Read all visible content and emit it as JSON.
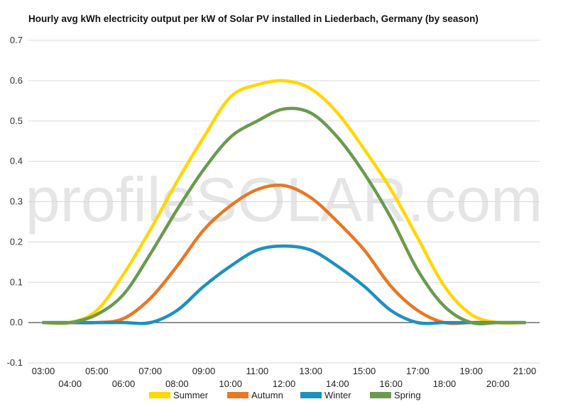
{
  "chart_data": {
    "type": "line",
    "title": "Hourly avg kWh electricity output per kW of Solar PV installed in Liederbach, Germany (by season)",
    "xlabel": "",
    "ylabel": "",
    "ylim": [
      -0.1,
      0.7
    ],
    "yticks": [
      "-0.1",
      "0.0",
      "0.1",
      "0.2",
      "0.3",
      "0.4",
      "0.5",
      "0.6",
      "0.7"
    ],
    "grid": true,
    "legend_position": "bottom",
    "watermark": "profileSOLAR.com",
    "x": [
      "03:00",
      "04:00",
      "05:00",
      "06:00",
      "07:00",
      "08:00",
      "09:00",
      "10:00",
      "11:00",
      "12:00",
      "13:00",
      "14:00",
      "15:00",
      "16:00",
      "17:00",
      "18:00",
      "19:00",
      "20:00",
      "21:00"
    ],
    "series": [
      {
        "name": "Summer",
        "color": "#FFD700",
        "values": [
          0.0,
          0.0,
          0.03,
          0.12,
          0.23,
          0.35,
          0.46,
          0.56,
          0.59,
          0.6,
          0.58,
          0.52,
          0.43,
          0.33,
          0.21,
          0.09,
          0.02,
          0.0,
          0.0
        ]
      },
      {
        "name": "Autumn",
        "color": "#E87722",
        "values": [
          0.0,
          0.0,
          0.0,
          0.01,
          0.06,
          0.14,
          0.23,
          0.29,
          0.33,
          0.34,
          0.31,
          0.25,
          0.18,
          0.09,
          0.03,
          0.0,
          0.0,
          0.0,
          0.0
        ]
      },
      {
        "name": "Winter",
        "color": "#1E90C0",
        "values": [
          0.0,
          0.0,
          0.0,
          0.0,
          0.0,
          0.03,
          0.09,
          0.14,
          0.18,
          0.19,
          0.18,
          0.14,
          0.09,
          0.03,
          0.0,
          0.0,
          0.0,
          0.0,
          0.0
        ]
      },
      {
        "name": "Spring",
        "color": "#6B9A4F",
        "values": [
          0.0,
          0.0,
          0.02,
          0.07,
          0.17,
          0.28,
          0.38,
          0.46,
          0.5,
          0.53,
          0.52,
          0.46,
          0.37,
          0.26,
          0.13,
          0.04,
          0.0,
          0.0,
          0.0
        ]
      }
    ]
  }
}
